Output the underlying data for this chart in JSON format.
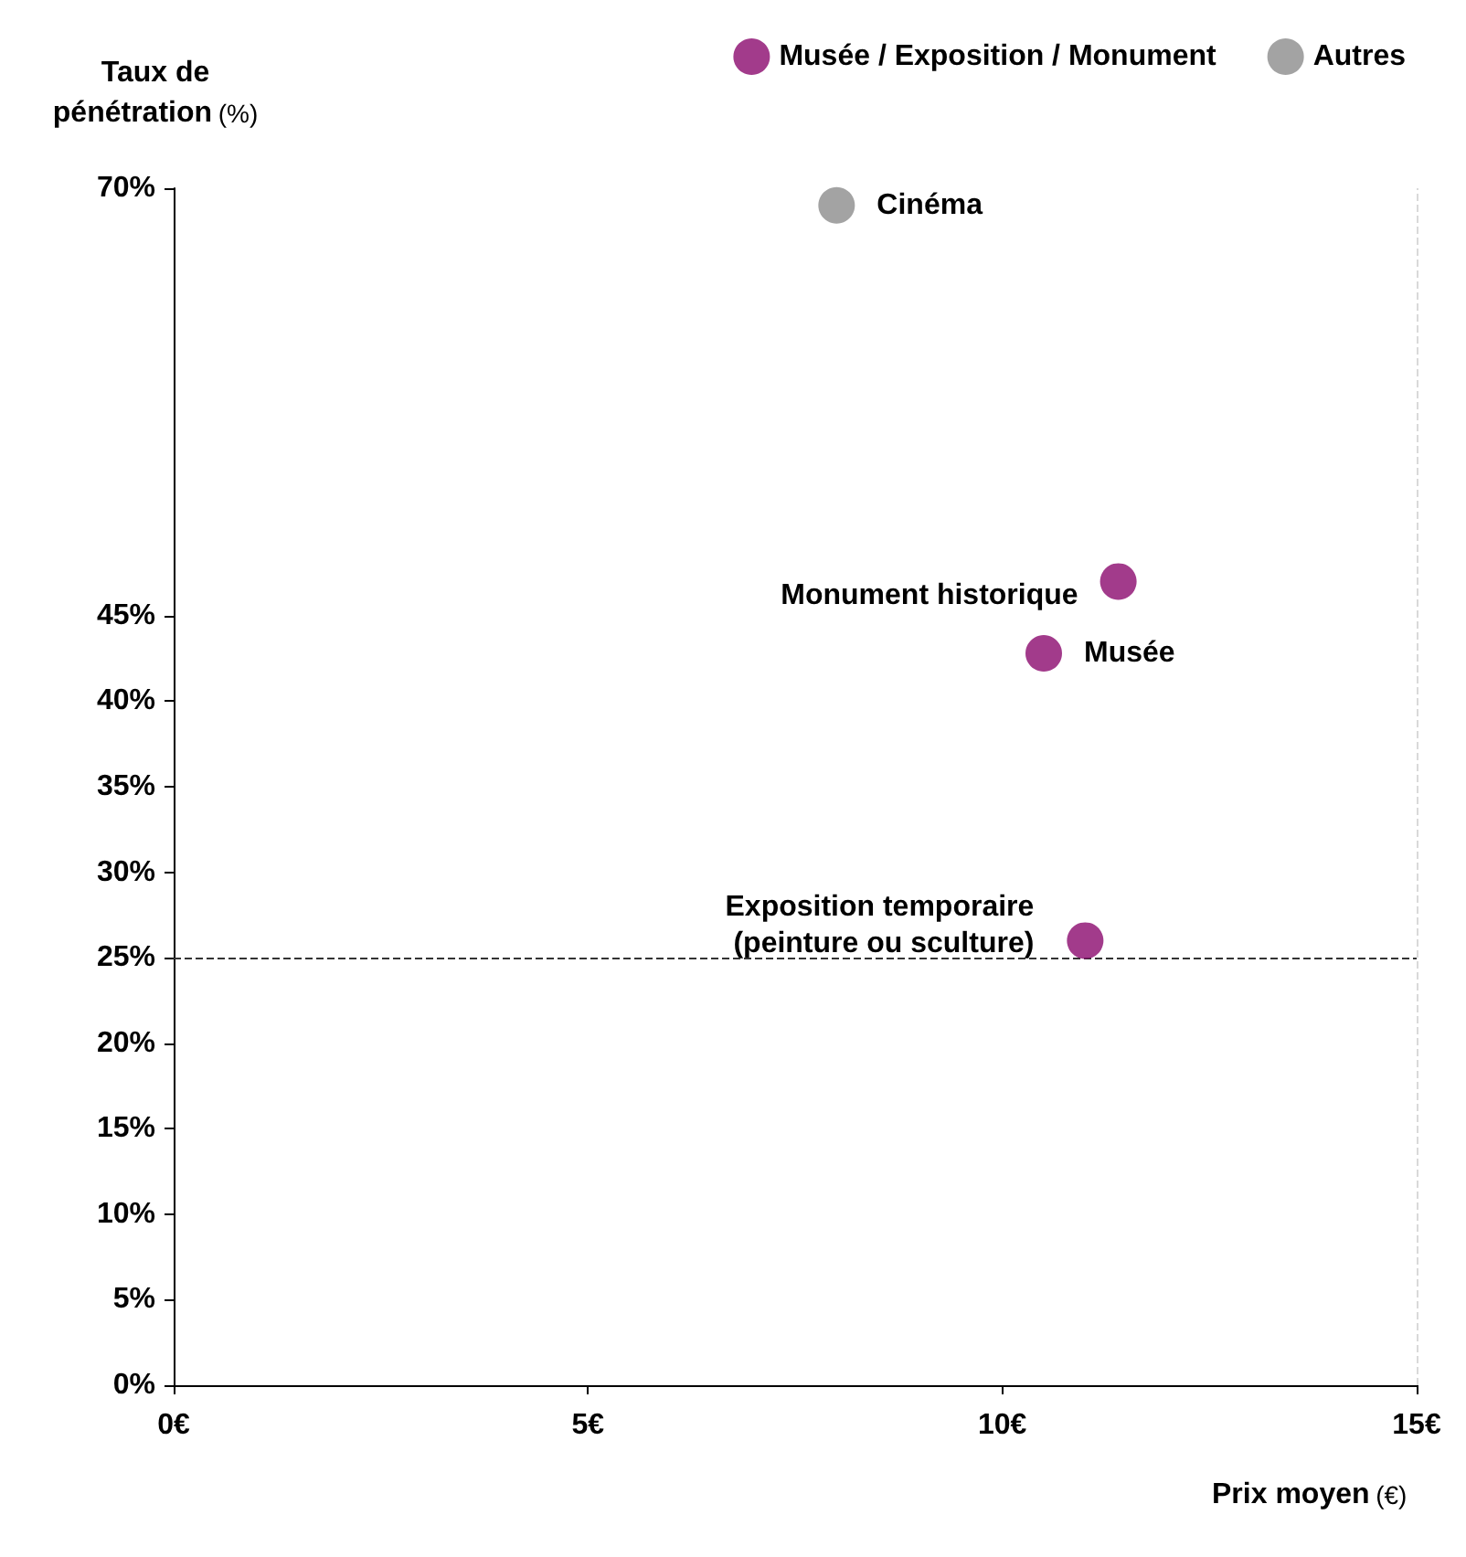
{
  "chart_data": {
    "type": "scatter",
    "xlabel": "Prix moyen (€)",
    "ylabel": "Taux de\npénétration (%)",
    "series": [
      {
        "name": "Musée / Exposition / Monument",
        "color": "#8b0a6e",
        "x": [
          11.4,
          10.5,
          11.0
        ],
        "values": [
          47,
          42.8,
          26
        ]
      },
      {
        "name": "Autres",
        "color": "#8c8c8c",
        "x": [
          8.0
        ],
        "values": [
          69
        ]
      }
    ],
    "xlim": [
      0,
      15
    ],
    "xticks": [
      {
        "value": 0,
        "label": "0€"
      },
      {
        "value": 5,
        "label": "5€"
      },
      {
        "value": 10,
        "label": "10€"
      },
      {
        "value": 15,
        "label": "15€"
      }
    ],
    "ylim": [
      0,
      70
    ],
    "yticks": [
      {
        "value": 0,
        "label": "0%"
      },
      {
        "value": 5,
        "label": "5%"
      },
      {
        "value": 10,
        "label": "10%"
      },
      {
        "value": 15,
        "label": "15%"
      },
      {
        "value": 20,
        "label": "20%"
      },
      {
        "value": 25,
        "label": "25%"
      },
      {
        "value": 30,
        "label": "30%"
      },
      {
        "value": 35,
        "label": "35%"
      },
      {
        "value": 40,
        "label": "40%"
      },
      {
        "value": 45,
        "label": "45%"
      },
      {
        "value": 70,
        "label": "70%"
      }
    ],
    "ref_lines": [
      {
        "axis": "y",
        "value": 25,
        "line_style": "dashed",
        "color": "#333333"
      },
      {
        "axis": "x",
        "value": 15,
        "line_style": "dashed",
        "color": "#d9d9d9"
      }
    ],
    "annotations": [
      {
        "text": "Cinéma",
        "x": 8.0,
        "y": 69
      },
      {
        "text": "Monument historique",
        "x": 11.4,
        "y": 47
      },
      {
        "text": "Musée",
        "x": 10.5,
        "y": 42.8
      },
      {
        "text": "Exposition temporaire\n(peinture ou sculture)",
        "x": 11.0,
        "y": 26
      }
    ],
    "legend": "top right",
    "grid": false,
    "marker": "circle"
  }
}
